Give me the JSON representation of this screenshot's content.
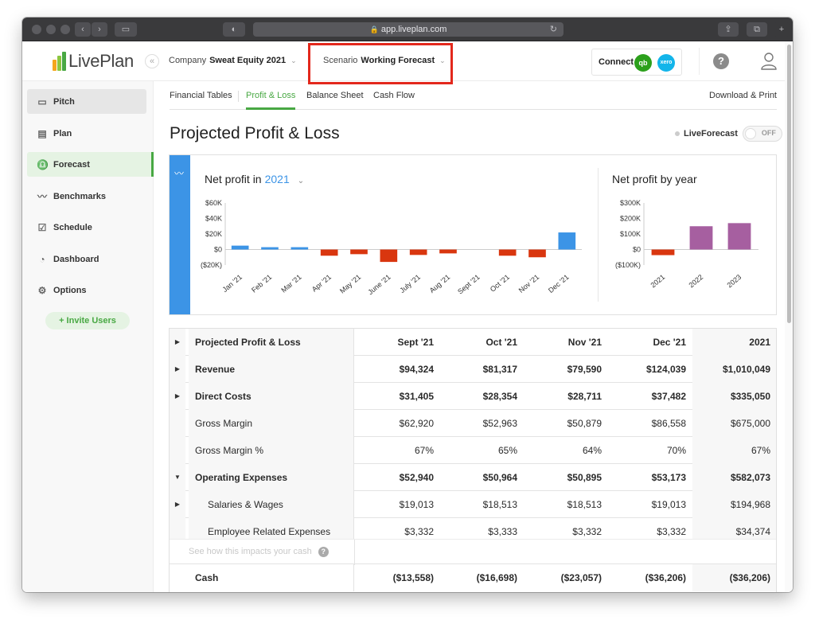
{
  "browser": {
    "url": "app.liveplan.com"
  },
  "header": {
    "logo_text": "LivePlan",
    "company_label": "Company",
    "company_value": "Sweat Equity 2021",
    "scenario_label": "Scenario",
    "scenario_value": "Working Forecast",
    "connect_label": "Connect",
    "qb_label": "qb",
    "xero_label": "xero",
    "help_label": "?"
  },
  "sidebar": {
    "items": [
      {
        "label": "Pitch",
        "icon": "monitor-icon"
      },
      {
        "label": "Plan",
        "icon": "document-icon"
      },
      {
        "label": "Forecast",
        "icon": "piggy-bank-icon"
      },
      {
        "label": "Benchmarks",
        "icon": "trend-line-icon"
      },
      {
        "label": "Schedule",
        "icon": "checkbox-icon"
      },
      {
        "label": "Dashboard",
        "icon": "gauge-icon"
      },
      {
        "label": "Options",
        "icon": "gear-icon"
      }
    ],
    "invite_label": "+ Invite Users",
    "active_color": "#48a843"
  },
  "tabs": {
    "items": [
      "Financial Tables",
      "Profit & Loss",
      "Balance Sheet",
      "Cash Flow"
    ],
    "active": "Profit & Loss",
    "download_label": "Download & Print"
  },
  "page": {
    "title": "Projected Profit & Loss",
    "liveforecast_label": "LiveForecast",
    "toggle_state": "OFF"
  },
  "chart_data": [
    {
      "type": "bar",
      "title": "Net profit in",
      "title_year": "2021",
      "categories": [
        "Jan '21",
        "Feb '21",
        "Mar '21",
        "Apr '21",
        "May '21",
        "June '21",
        "July '21",
        "Aug '21",
        "Sept '21",
        "Oct '21",
        "Nov '21",
        "Dec '21"
      ],
      "values": [
        5000,
        3000,
        3000,
        -8000,
        -6000,
        -16000,
        -7000,
        -5000,
        0,
        -8000,
        -10000,
        22000
      ],
      "yticks": [
        "$60K",
        "$40K",
        "$20K",
        "$0",
        "($20K)"
      ],
      "ylim": [
        -20000,
        60000
      ],
      "colors": {
        "positive": "#3c94e6",
        "negative": "#d9360f"
      }
    },
    {
      "type": "bar",
      "title": "Net profit by year",
      "categories": [
        "2021",
        "2022",
        "2023"
      ],
      "values": [
        -36206,
        150000,
        170000
      ],
      "yticks": [
        "$300K",
        "$200K",
        "$100K",
        "$0",
        "($100K)"
      ],
      "ylim": [
        -100000,
        300000
      ],
      "colors": {
        "positive": "#a65fa0",
        "negative": "#d9360f"
      }
    }
  ],
  "table": {
    "header": [
      "Projected Profit & Loss",
      "Sept '21",
      "Oct '21",
      "Nov '21",
      "Dec '21",
      "2021"
    ],
    "rows": [
      {
        "label": "Revenue",
        "values": [
          "$94,324",
          "$81,317",
          "$79,590",
          "$124,039",
          "$1,010,049"
        ],
        "bold": true,
        "arrow": "▶"
      },
      {
        "label": "Direct Costs",
        "values": [
          "$31,405",
          "$28,354",
          "$28,711",
          "$37,482",
          "$335,050"
        ],
        "bold": true,
        "arrow": "▶"
      },
      {
        "label": "Gross Margin",
        "values": [
          "$62,920",
          "$52,963",
          "$50,879",
          "$86,558",
          "$675,000"
        ],
        "bold": false,
        "arrow": ""
      },
      {
        "label": "Gross Margin %",
        "values": [
          "67%",
          "65%",
          "64%",
          "70%",
          "67%"
        ],
        "bold": false,
        "arrow": ""
      },
      {
        "label": "Operating Expenses",
        "values": [
          "$52,940",
          "$50,964",
          "$50,895",
          "$53,173",
          "$582,073"
        ],
        "bold": true,
        "arrow": "▼"
      },
      {
        "label": "Salaries & Wages",
        "values": [
          "$19,013",
          "$18,513",
          "$18,513",
          "$19,013",
          "$194,968"
        ],
        "bold": false,
        "arrow": "▶",
        "indent": true
      },
      {
        "label": "Employee Related Expenses",
        "values": [
          "$3,332",
          "$3,333",
          "$3,332",
          "$3,332",
          "$34,374"
        ],
        "bold": false,
        "arrow": "",
        "indent": true
      }
    ],
    "impact_label": "See how this impacts your cash",
    "cash": {
      "label": "Cash",
      "values": [
        "($13,558)",
        "($16,698)",
        "($23,057)",
        "($36,206)",
        "($36,206)"
      ]
    }
  }
}
